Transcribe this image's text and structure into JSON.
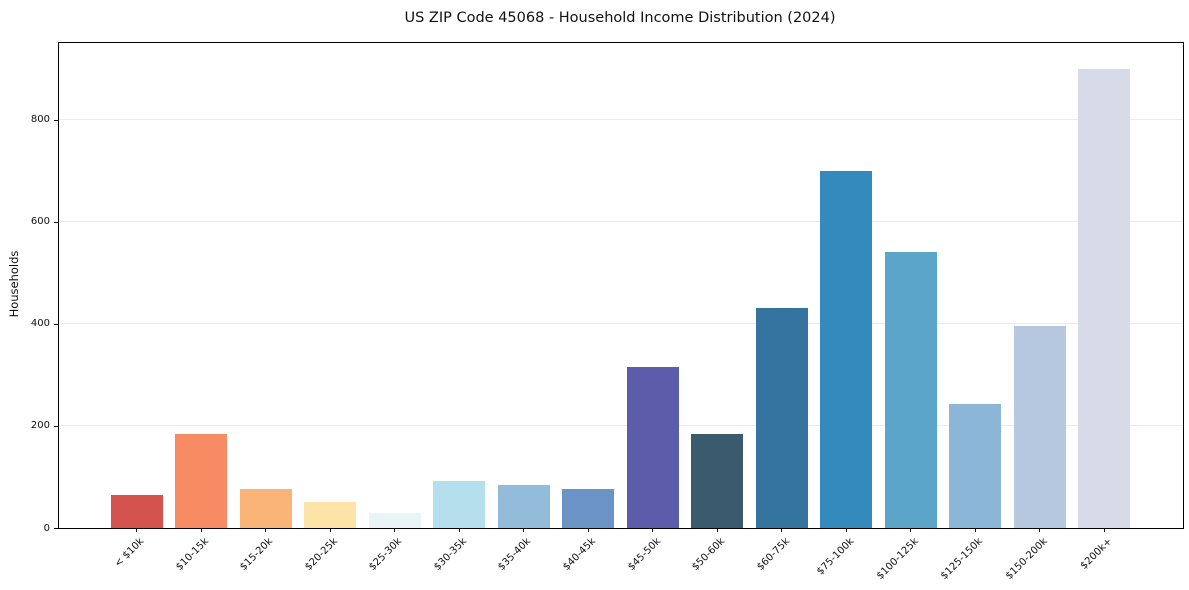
{
  "chart_data": {
    "type": "bar",
    "title": "US ZIP Code 45068 - Household Income Distribution (2024)",
    "xlabel": "",
    "ylabel": "Households",
    "categories": [
      "< $10k",
      "$10-15k",
      "$15-20k",
      "$20-25k",
      "$25-30k",
      "$30-35k",
      "$35-40k",
      "$40-45k",
      "$45-50k",
      "$50-60k",
      "$60-75k",
      "$75-100k",
      "$100-125k",
      "$125-150k",
      "$150-200k",
      "$200k+"
    ],
    "values": [
      65,
      185,
      76,
      50,
      30,
      92,
      85,
      77,
      315,
      185,
      430,
      700,
      540,
      243,
      395,
      900
    ],
    "bar_colors": [
      "#d4534f",
      "#f68b64",
      "#fbb478",
      "#fde3a7",
      "#e8f4f6",
      "#b6dfed",
      "#92bcd9",
      "#6b93c5",
      "#5d5caa",
      "#3a5a6e",
      "#35749e",
      "#348abd",
      "#5ba4ca",
      "#8cb6d8",
      "#b5c8e0",
      "#d7dae9"
    ],
    "ylim": [
      0,
      950
    ],
    "yticks": [
      0,
      200,
      400,
      600,
      800
    ],
    "grid": "horizontal-only",
    "legend": "none",
    "x_tick_rotation_deg": 45,
    "colors": {
      "background": "#ffffff",
      "gridline": "#ebebeb",
      "spine": "#000000",
      "text": "#111111"
    }
  }
}
